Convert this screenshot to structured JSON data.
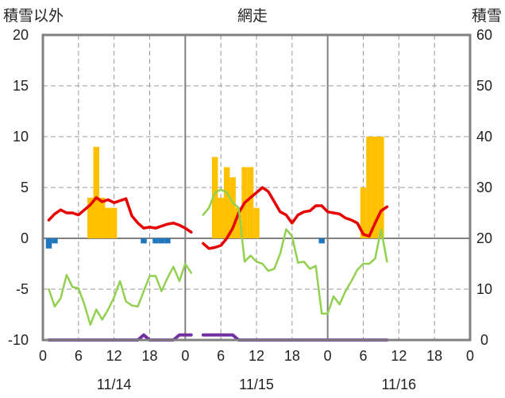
{
  "chart_data": {
    "type": "bar+line",
    "title": "網走",
    "left_axis_label": "積雪以外",
    "right_axis_label": "積雪",
    "y_left": {
      "min": -10,
      "max": 20,
      "ticks": [
        20,
        15,
        10,
        5,
        0,
        -5,
        -10
      ]
    },
    "y_right": {
      "min": 0,
      "max": 60,
      "ticks": [
        60,
        50,
        40,
        30,
        20,
        10,
        0
      ]
    },
    "x_hours": {
      "min": 0,
      "max": 72
    },
    "x_tick_labels": [
      "0",
      "6",
      "12",
      "18",
      "0",
      "6",
      "12",
      "18",
      "0",
      "6",
      "12",
      "18",
      "0"
    ],
    "date_labels": [
      "11/14",
      "11/15",
      "11/16"
    ],
    "colors": {
      "snowfall": "#ffc000",
      "precip_neg": "#1f77c0",
      "temperature": "#e60000",
      "humidity_line": "#92d050",
      "snow_depth": "#7030a0",
      "frame": "#808080"
    },
    "series": [
      {
        "kind": "bar",
        "axis": "left",
        "color": "#ffc000",
        "points": [
          [
            8,
            4
          ],
          [
            9,
            9
          ],
          [
            10,
            4
          ],
          [
            11,
            3
          ],
          [
            12,
            3
          ],
          [
            29,
            8
          ],
          [
            30,
            4
          ],
          [
            31,
            7
          ],
          [
            32,
            6
          ],
          [
            33,
            3
          ],
          [
            34,
            7
          ],
          [
            35,
            7
          ],
          [
            36,
            3
          ],
          [
            54,
            5
          ],
          [
            55,
            10
          ],
          [
            56,
            10
          ],
          [
            57,
            10
          ]
        ]
      },
      {
        "kind": "bar",
        "axis": "left",
        "color": "#1f77c0",
        "points": [
          [
            1,
            -1
          ],
          [
            2,
            -0.5
          ],
          [
            17,
            -0.5
          ],
          [
            19,
            -0.5
          ],
          [
            20,
            -0.5
          ],
          [
            21,
            -0.5
          ],
          [
            47,
            -0.5
          ]
        ]
      },
      {
        "kind": "line",
        "axis": "left",
        "color": "#e60000",
        "points": [
          [
            1,
            1.8
          ],
          [
            2,
            2.4
          ],
          [
            3,
            2.8
          ],
          [
            4,
            2.5
          ],
          [
            5,
            2.5
          ],
          [
            6,
            2.3
          ],
          [
            7,
            2.8
          ],
          [
            8,
            3.3
          ],
          [
            9,
            4.0
          ],
          [
            10,
            3.6
          ],
          [
            11,
            3.8
          ],
          [
            12,
            3.5
          ],
          [
            13,
            3.7
          ],
          [
            14,
            3.9
          ],
          [
            15,
            2.2
          ],
          [
            16,
            1.5
          ],
          [
            17,
            1.0
          ],
          [
            18,
            1.1
          ],
          [
            19,
            1.0
          ],
          [
            20,
            1.2
          ],
          [
            21,
            1.4
          ],
          [
            22,
            1.5
          ],
          [
            23,
            1.3
          ],
          [
            24,
            1.0
          ],
          [
            25,
            0.6
          ],
          null,
          [
            27,
            -0.5
          ],
          [
            28,
            -1.0
          ],
          [
            29,
            -0.9
          ],
          [
            30,
            -0.7
          ],
          [
            31,
            0.0
          ],
          [
            32,
            1.0
          ],
          [
            33,
            2.5
          ],
          [
            34,
            3.5
          ],
          [
            35,
            4.0
          ],
          [
            36,
            4.5
          ],
          [
            37,
            5.0
          ],
          [
            38,
            4.6
          ],
          [
            39,
            3.6
          ],
          [
            40,
            2.6
          ],
          [
            41,
            2.3
          ],
          [
            42,
            1.5
          ],
          [
            43,
            2.3
          ],
          [
            44,
            2.6
          ],
          [
            45,
            2.7
          ],
          [
            46,
            3.2
          ],
          [
            47,
            3.2
          ],
          [
            48,
            2.6
          ],
          [
            49,
            2.5
          ],
          [
            50,
            2.4
          ],
          [
            51,
            2.0
          ],
          [
            52,
            1.8
          ],
          [
            53,
            1.5
          ],
          [
            54,
            0.4
          ],
          [
            55,
            0.2
          ],
          [
            56,
            1.5
          ],
          [
            57,
            2.7
          ],
          [
            58,
            3.1
          ]
        ]
      },
      {
        "kind": "line",
        "axis": "left",
        "color": "#92d050",
        "points": [
          [
            1,
            -5.0
          ],
          [
            2,
            -6.7
          ],
          [
            3,
            -5.9
          ],
          [
            4,
            -3.6
          ],
          [
            5,
            -4.8
          ],
          [
            6,
            -4.9
          ],
          [
            7,
            -6.5
          ],
          [
            8,
            -8.5
          ],
          [
            9,
            -7.0
          ],
          [
            10,
            -8.0
          ],
          [
            11,
            -7.0
          ],
          [
            12,
            -5.8
          ],
          [
            13,
            -4.2
          ],
          [
            14,
            -6.2
          ],
          [
            15,
            -6.6
          ],
          [
            16,
            -6.7
          ],
          [
            17,
            -5.2
          ],
          [
            18,
            -3.7
          ],
          [
            19,
            -3.7
          ],
          [
            20,
            -5.2
          ],
          [
            21,
            -3.9
          ],
          [
            22,
            -2.8
          ],
          [
            23,
            -4.2
          ],
          [
            24,
            -2.5
          ],
          [
            25,
            -3.4
          ],
          null,
          [
            27,
            2.3
          ],
          [
            28,
            3.0
          ],
          [
            29,
            4.5
          ],
          [
            30,
            4.8
          ],
          [
            31,
            4.5
          ],
          [
            32,
            3.5
          ],
          [
            33,
            3.0
          ],
          [
            34,
            -2.3
          ],
          [
            35,
            -1.7
          ],
          [
            36,
            -2.3
          ],
          [
            37,
            -2.5
          ],
          [
            38,
            -3.2
          ],
          [
            39,
            -3.0
          ],
          [
            40,
            -1.5
          ],
          [
            41,
            0.9
          ],
          [
            42,
            0.2
          ],
          [
            43,
            -2.4
          ],
          [
            44,
            -2.3
          ],
          [
            45,
            -3.0
          ],
          [
            46,
            -2.7
          ],
          [
            47,
            -7.4
          ],
          [
            48,
            -7.4
          ],
          [
            49,
            -5.7
          ],
          [
            50,
            -6.5
          ],
          [
            51,
            -5.2
          ],
          [
            52,
            -4.2
          ],
          [
            53,
            -3.1
          ],
          [
            54,
            -2.5
          ],
          [
            55,
            -2.5
          ],
          [
            56,
            -2.0
          ],
          [
            57,
            0.9
          ],
          [
            58,
            -2.3
          ]
        ]
      },
      {
        "kind": "line",
        "axis": "right",
        "color": "#7030a0",
        "points": [
          [
            1,
            0
          ],
          [
            2,
            0
          ],
          [
            3,
            0
          ],
          [
            4,
            0
          ],
          [
            5,
            0
          ],
          [
            6,
            0
          ],
          [
            7,
            0
          ],
          [
            8,
            0
          ],
          [
            9,
            0
          ],
          [
            10,
            0
          ],
          [
            11,
            0
          ],
          [
            12,
            0
          ],
          [
            13,
            0
          ],
          [
            14,
            0
          ],
          [
            15,
            0
          ],
          [
            16,
            0
          ],
          [
            17,
            1
          ],
          [
            18,
            0
          ],
          [
            19,
            0
          ],
          [
            20,
            0
          ],
          [
            21,
            0
          ],
          [
            22,
            0
          ],
          [
            23,
            1
          ],
          [
            24,
            1
          ],
          [
            25,
            1
          ],
          null,
          [
            27,
            1
          ],
          [
            28,
            1
          ],
          [
            29,
            1
          ],
          [
            30,
            1
          ],
          [
            31,
            1
          ],
          [
            32,
            1
          ],
          [
            33,
            0
          ],
          [
            34,
            0
          ],
          [
            35,
            0
          ],
          [
            36,
            0
          ],
          [
            37,
            0
          ],
          [
            38,
            0
          ],
          [
            39,
            0
          ],
          [
            40,
            0
          ],
          [
            41,
            0
          ],
          [
            42,
            0
          ],
          [
            43,
            0
          ],
          [
            44,
            0
          ],
          [
            45,
            0
          ],
          [
            46,
            0
          ],
          [
            47,
            0
          ],
          [
            48,
            0
          ],
          [
            49,
            0
          ],
          [
            50,
            0
          ],
          [
            51,
            0
          ],
          [
            52,
            0
          ],
          [
            53,
            0
          ],
          [
            54,
            0
          ],
          [
            55,
            0
          ],
          [
            56,
            0
          ],
          [
            57,
            0
          ],
          [
            58,
            0
          ]
        ]
      }
    ]
  }
}
